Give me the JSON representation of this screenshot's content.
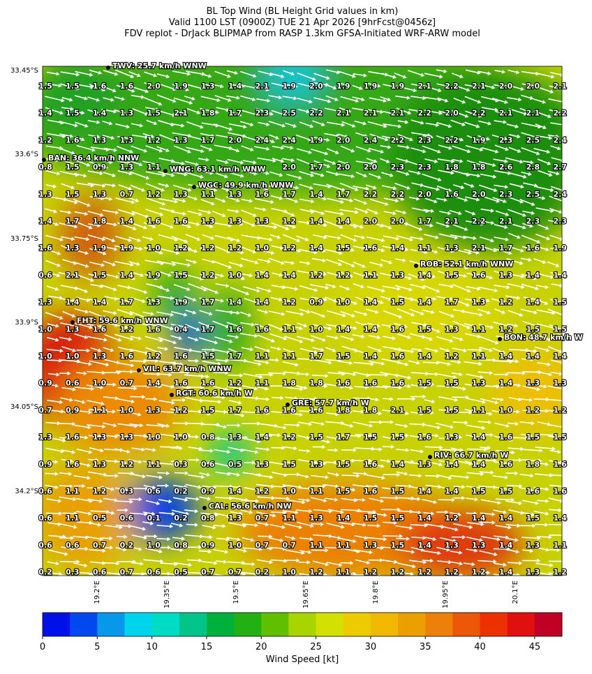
{
  "title_lines": [
    "BL Top Wind (BL Height Grid values in km)",
    "Valid 1100 LST (0900Z) TUE 21 Apr 2026 [9hrFcst@0456z]",
    "FDV replot - DrJack BLIPMAP from RASP 1.3km GFSA-Initiated WRF-ARW model"
  ],
  "stations": [
    "TWV: 25.7 km/h WNW",
    "BAN: 36.4 km/h NNW",
    "WNG: 63.1 km/h WNW",
    "WGC: 49.9 km/h WNW",
    "ROB: 52.1 km/h WNW",
    "FHT: 59.6 km/h WNW",
    "BON: 48.7 km/h W",
    "VIL: 63.7 km/h WNW",
    "RGT: 60.6 km/h W",
    "GRE: 57.7 km/h W",
    "RIV: 66.7 km/h W",
    "CAL: 56.6 km/h NW"
  ],
  "lat_ticks": [
    "33.45°S",
    "33.6°S",
    "33.75°S",
    "33.9°S",
    "34.05°S",
    "34.2°S"
  ],
  "lon_ticks": [
    "19.2°E",
    "19.35°E",
    "19.5°E",
    "19.65°E",
    "19.8°E",
    "19.95°E",
    "20.1°E"
  ],
  "grid": [
    [
      "1.5",
      "1.5",
      "1.6",
      "1.6",
      "2.0",
      "1.9",
      "1.3",
      "1.4",
      "2.1",
      "1.9",
      "2.0",
      "1.9",
      "1.9",
      "1.9",
      "2.1",
      "2.2",
      "2.1",
      "2.0",
      "2.0",
      "2.1"
    ],
    [
      "1.4",
      "1.5",
      "1.4",
      "1.3",
      "1.5",
      "2.1",
      "1.8",
      "1.7",
      "2.3",
      "2.5",
      "2.2",
      "2.1",
      "2.1",
      "2.1",
      "2.2",
      "2.0",
      "2.2",
      "2.1",
      "2.1",
      "2.2"
    ],
    [
      "1.2",
      "1.6",
      "1.3",
      "1.3",
      "1.2",
      "1.3",
      "1.7",
      "2.0",
      "2.4",
      "2.4",
      "1.9",
      "2.0",
      "2.4",
      "2.2",
      "2.3",
      "2.2",
      "1.9",
      "2.3",
      "2.5",
      "2.4"
    ],
    [
      "0.8",
      "1.5",
      "0.9",
      "1.3",
      "1.1",
      null,
      null,
      null,
      null,
      "2.0",
      "1.7",
      "2.0",
      "2.0",
      "2.3",
      "2.3",
      "1.8",
      "1.8",
      "2.6",
      "2.8",
      "2.7"
    ],
    [
      "1.3",
      "1.5",
      "1.3",
      "0.7",
      "1.2",
      "1.3",
      "1.1",
      "1.3",
      "1.6",
      "1.7",
      "1.4",
      "1.7",
      "2.2",
      "2.2",
      "2.0",
      "1.6",
      "2.0",
      "2.3",
      "2.5",
      "2.4"
    ],
    [
      "1.4",
      "1.7",
      "1.8",
      "1.4",
      "1.6",
      "1.6",
      "1.3",
      "1.3",
      "1.3",
      "1.2",
      "1.4",
      "1.4",
      "2.0",
      "2.0",
      "1.7",
      "2.1",
      "2.2",
      "2.1",
      "2.3",
      "2.3"
    ],
    [
      "1.6",
      "1.3",
      "1.9",
      "1.9",
      "1.0",
      "1.2",
      "1.2",
      "1.2",
      "1.0",
      "1.2",
      "1.4",
      "1.5",
      "1.6",
      "1.4",
      "1.1",
      "1.3",
      "2.1",
      "1.7",
      "1.6",
      "1.9"
    ],
    [
      "0.6",
      "2.1",
      "1.5",
      "1.4",
      "1.9",
      "1.5",
      "1.2",
      "1.0",
      "1.4",
      "1.4",
      "1.2",
      "1.2",
      "1.1",
      "1.3",
      "1.4",
      "1.5",
      "1.6",
      "1.3",
      "1.4",
      "1.4"
    ],
    [
      "1.3",
      "1.4",
      "1.4",
      "1.7",
      "1.3",
      "1.9",
      "1.7",
      "1.4",
      "1.4",
      "1.2",
      "0.9",
      "1.0",
      "1.4",
      "1.5",
      "1.4",
      "1.7",
      "1.3",
      "1.2",
      "1.4",
      "1.5"
    ],
    [
      "1.0",
      "1.3",
      "1.6",
      "1.2",
      "1.6",
      "0.4",
      "1.7",
      "1.6",
      "1.6",
      "1.1",
      "1.0",
      "1.4",
      "1.4",
      "1.6",
      "1.5",
      "1.3",
      "1.1",
      "1.2",
      "1.5",
      "1.5"
    ],
    [
      "1.0",
      "1.0",
      "1.3",
      "1.6",
      "1.2",
      "1.6",
      "1.5",
      "1.7",
      "1.1",
      "1.1",
      "1.7",
      "1.5",
      "1.4",
      "1.6",
      "1.4",
      "1.2",
      "1.1",
      "1.4",
      "1.4",
      "1.4"
    ],
    [
      "0.9",
      "0.6",
      "1.0",
      "0.7",
      "1.4",
      "1.6",
      "1.6",
      "1.2",
      "1.1",
      "1.8",
      "1.8",
      "1.6",
      "1.6",
      "1.6",
      "1.5",
      "1.5",
      "1.3",
      "1.4",
      "1.3",
      "1.3"
    ],
    [
      "0.7",
      "0.9",
      "1.1",
      "1.0",
      "1.3",
      "1.2",
      "1.5",
      "1.7",
      "1.6",
      "1.6",
      "1.6",
      "1.8",
      "1.8",
      "2.1",
      "1.5",
      "1.5",
      "1.1",
      "1.0",
      "1.2",
      "1.2"
    ],
    [
      "1.3",
      "1.6",
      "1.3",
      "1.3",
      "1.0",
      "1.0",
      "0.8",
      "1.3",
      "1.4",
      "1.2",
      "1.5",
      "1.7",
      "1.5",
      "1.5",
      "1.6",
      "1.3",
      "1.4",
      "1.6",
      "1.5",
      "1.5"
    ],
    [
      "0.9",
      "1.6",
      "1.3",
      "1.2",
      "1.1",
      "0.3",
      "0.6",
      "0.5",
      "1.3",
      "1.5",
      "1.3",
      "1.5",
      "1.6",
      "1.4",
      "1.3",
      "1.4",
      "1.4",
      "1.6",
      "1.8",
      "1.6"
    ],
    [
      "0.6",
      "1.1",
      "1.2",
      "0.3",
      "0.6",
      "0.2",
      "0.9",
      "1.4",
      "1.2",
      "1.0",
      "1.1",
      "1.5",
      "1.6",
      "1.5",
      "1.4",
      "1.4",
      "1.5",
      "1.5",
      "1.6",
      "1.6"
    ],
    [
      "0.6",
      "1.1",
      "0.5",
      "0.6",
      "0.1",
      "0.2",
      "0.8",
      "1.3",
      "0.7",
      "1.1",
      "1.3",
      "1.4",
      "1.5",
      "1.5",
      "1.4",
      "1.2",
      "1.4",
      "1.4",
      "1.5",
      "1.4"
    ],
    [
      "0.6",
      "0.6",
      "0.7",
      "0.2",
      "1.0",
      "0.8",
      "0.9",
      "1.0",
      "0.7",
      "0.7",
      "1.1",
      "1.1",
      "1.3",
      "1.5",
      "1.4",
      "1.3",
      "1.3",
      "1.4",
      "1.3",
      "1.1"
    ],
    [
      "0.2",
      "0.3",
      "0.6",
      "0.7",
      "0.6",
      "0.5",
      "0.7",
      "0.7",
      "0.2",
      "1.0",
      "1.2",
      "1.1",
      "1.2",
      "1.2",
      "1.2",
      "1.2",
      "1.2",
      "1.4",
      "1.3",
      "1.2"
    ]
  ],
  "colorbar": {
    "label": "Wind Speed [kt]",
    "range": [
      0,
      47.5
    ],
    "ticks": [
      0,
      5,
      10,
      15,
      20,
      25,
      30,
      35,
      40,
      45
    ],
    "colors": [
      "#0010e8",
      "#0048f0",
      "#0898ea",
      "#00d4ec",
      "#00dcc4",
      "#00c48a",
      "#00b03c",
      "#22b014",
      "#60c000",
      "#a8d400",
      "#d4e000",
      "#eccc00",
      "#f0b800",
      "#eca000",
      "#ec8008",
      "#ec5808",
      "#ec3000",
      "#e01010",
      "#c00024"
    ]
  }
}
